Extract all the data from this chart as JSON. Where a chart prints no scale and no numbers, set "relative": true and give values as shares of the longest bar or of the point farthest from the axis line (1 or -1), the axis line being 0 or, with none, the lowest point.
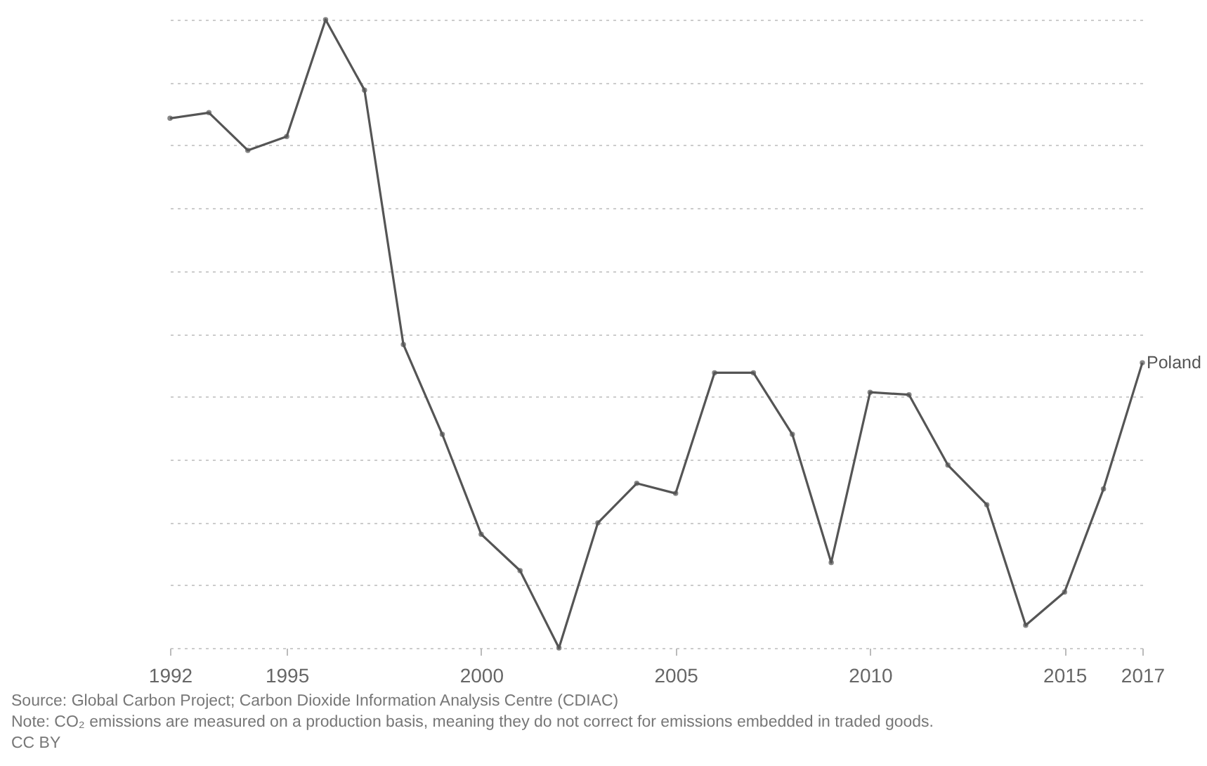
{
  "chart_data": {
    "type": "line",
    "relative": true,
    "x": [
      1992,
      1993,
      1994,
      1995,
      1996,
      1997,
      1998,
      1999,
      2000,
      2001,
      2002,
      2003,
      2004,
      2005,
      2006,
      2007,
      2008,
      2009,
      2010,
      2011,
      2012,
      2013,
      2014,
      2015,
      2016,
      2017
    ],
    "series": [
      {
        "name": "Poland",
        "color": "#555555",
        "values": [
          0.843,
          0.852,
          0.792,
          0.814,
          1,
          0.888,
          0.483,
          0.34,
          0.181,
          0.123,
          0,
          0.199,
          0.262,
          0.246,
          0.438,
          0.438,
          0.34,
          0.136,
          0.407,
          0.403,
          0.291,
          0.228,
          0.036,
          0.089,
          0.253,
          0.454
        ]
      }
    ],
    "xlim": [
      1992,
      2017
    ],
    "xticks": [
      1992,
      1995,
      2000,
      2005,
      2010,
      2015,
      2017
    ],
    "grid": "y",
    "marker": "circle",
    "line_style": "solid",
    "annotations": [
      "Source: Global Carbon Project; Carbon Dioxide Information Analysis Centre (CDIAC)",
      "Note: CO₂ emissions are measured on a production basis, meaning they do not correct for emissions embedded in traded goods.",
      "CC BY"
    ]
  }
}
